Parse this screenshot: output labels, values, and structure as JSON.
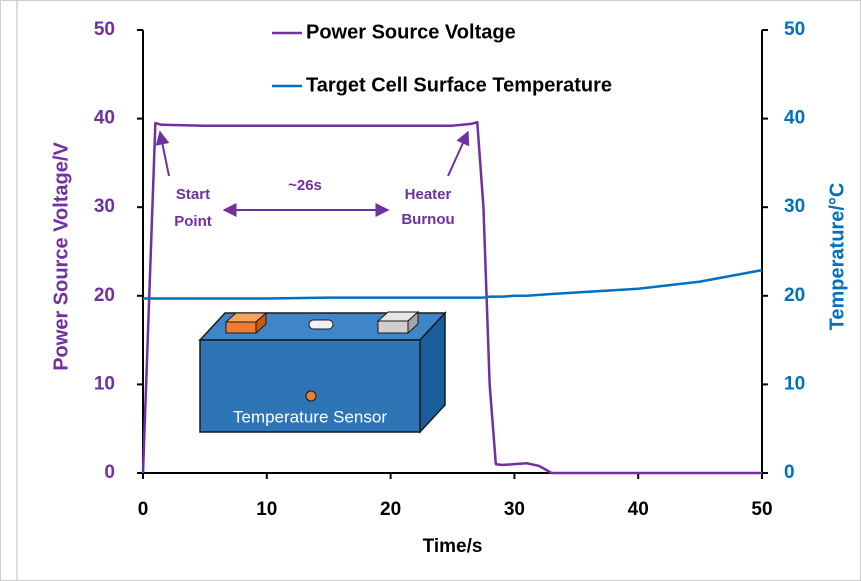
{
  "chart_data": {
    "type": "line",
    "x_label": "Time/s",
    "y_label": "Power Source Voltage/V",
    "y2_label": "Temperature/°C",
    "x": [
      0,
      1,
      1.5,
      5,
      10,
      15,
      20,
      25,
      26.5,
      27,
      27.5,
      28,
      28.5,
      29,
      30,
      31,
      32,
      33,
      40,
      45,
      50
    ],
    "series": [
      {
        "name": "Power Source Voltage",
        "color": "#7030a0",
        "values": [
          0,
          39.5,
          39.3,
          39.2,
          39.2,
          39.2,
          39.2,
          39.2,
          39.4,
          39.6,
          30,
          10,
          1,
          0.9,
          1,
          1.1,
          0.8,
          0,
          0,
          0,
          0
        ]
      },
      {
        "name": "Target Cell Surface Temperature",
        "color": "#0070c0",
        "axis": "y2",
        "values": [
          19.7,
          19.7,
          19.7,
          19.7,
          19.7,
          19.8,
          19.8,
          19.8,
          19.8,
          19.8,
          19.8,
          19.9,
          19.9,
          19.9,
          20,
          20,
          20.1,
          20.2,
          20.8,
          21.6,
          22.9
        ]
      }
    ],
    "xlim": [
      0,
      50
    ],
    "xticks": [
      0,
      10,
      20,
      30,
      40,
      50
    ],
    "ylim": [
      0,
      50
    ],
    "yticks": [
      0,
      10,
      20,
      30,
      40,
      50
    ],
    "y2lim": [
      0,
      50
    ],
    "y2ticks": [
      0,
      10,
      20,
      30,
      40,
      50
    ],
    "annotations": [
      "Start",
      "Point",
      "~26s",
      "Heater",
      "Burnou"
    ],
    "diagram_label": "Temperature Sensor"
  }
}
